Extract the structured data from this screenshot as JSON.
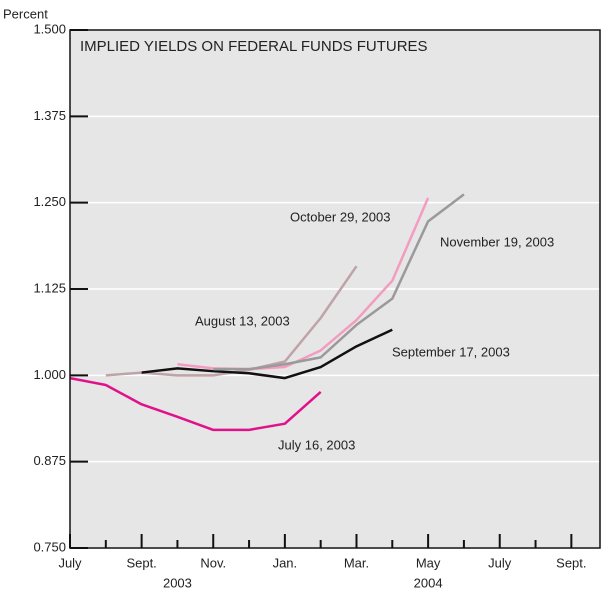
{
  "chart_data": {
    "type": "line",
    "title": "IMPLIED YIELDS ON FEDERAL FUNDS FUTURES",
    "ylabel": "Percent",
    "xlim": [
      0,
      14.8
    ],
    "ylim": [
      0.75,
      1.5
    ],
    "yticks": [
      {
        "value": 0.75,
        "label": "0.750"
      },
      {
        "value": 0.875,
        "label": "0.875"
      },
      {
        "value": 1.0,
        "label": "1.000"
      },
      {
        "value": 1.125,
        "label": "1.125"
      },
      {
        "value": 1.25,
        "label": "1.250"
      },
      {
        "value": 1.375,
        "label": "1.375"
      },
      {
        "value": 1.5,
        "label": "1.500"
      }
    ],
    "xticks": [
      {
        "value": 0,
        "label": "July"
      },
      {
        "value": 2,
        "label": "Sept."
      },
      {
        "value": 4,
        "label": "Nov."
      },
      {
        "value": 6,
        "label": "Jan."
      },
      {
        "value": 8,
        "label": "Mar."
      },
      {
        "value": 10,
        "label": "May"
      },
      {
        "value": 12,
        "label": "July"
      },
      {
        "value": 14,
        "label": "Sept."
      }
    ],
    "x_minor_ticks": [
      1,
      3,
      5,
      7,
      9,
      11,
      13
    ],
    "x_group_labels": [
      {
        "value": 3,
        "label": "2003"
      },
      {
        "value": 10,
        "label": "2004"
      }
    ],
    "grid": true,
    "series": [
      {
        "name": "July 16, 2003",
        "color": "#e0118a",
        "x": [
          0,
          1,
          2,
          3,
          4,
          5,
          6,
          7
        ],
        "values": [
          0.996,
          0.986,
          0.958,
          0.94,
          0.921,
          0.921,
          0.93,
          0.976
        ]
      },
      {
        "name": "August 13, 2003",
        "color": "#bfa3a8",
        "x": [
          1,
          2,
          3,
          4,
          5,
          6,
          7,
          8
        ],
        "values": [
          1.0,
          1.004,
          1.0,
          1.0,
          1.008,
          1.02,
          1.083,
          1.158
        ]
      },
      {
        "name": "September 17, 2003",
        "color": "#111111",
        "x": [
          2,
          3,
          4,
          5,
          6,
          7,
          8,
          9
        ],
        "values": [
          1.004,
          1.01,
          1.006,
          1.003,
          0.996,
          1.012,
          1.042,
          1.066
        ]
      },
      {
        "name": "October 29, 2003",
        "color": "#f49cc0",
        "x": [
          3,
          4,
          5,
          6,
          7,
          8,
          9,
          10
        ],
        "values": [
          1.016,
          1.01,
          1.009,
          1.012,
          1.036,
          1.08,
          1.137,
          1.257
        ]
      },
      {
        "name": "November 19, 2003",
        "color": "#9a9a9a",
        "x": [
          4,
          5,
          6,
          7,
          8,
          9,
          10,
          11
        ],
        "values": [
          1.009,
          1.009,
          1.016,
          1.026,
          1.073,
          1.111,
          1.223,
          1.262
        ]
      }
    ]
  }
}
